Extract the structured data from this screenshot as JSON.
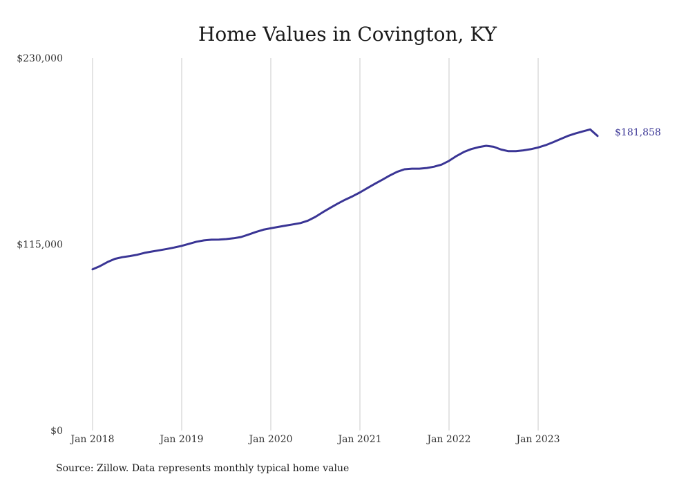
{
  "colors": {
    "line": "#3a3595",
    "grid": "#c8c8c8",
    "text": "#1a1a1a"
  },
  "source": "Source: Zillow. Data represents monthly typical home value",
  "chart_data": {
    "type": "line",
    "title": "Home Values in Covington, KY",
    "xlabel": "",
    "ylabel": "",
    "ylim": [
      0,
      230000
    ],
    "y_ticks": [
      {
        "value": 0,
        "label": "$0"
      },
      {
        "value": 115000,
        "label": "$115,000"
      },
      {
        "value": 230000,
        "label": "$230,000"
      }
    ],
    "x_ticks": [
      {
        "date": "2018-01",
        "label": "Jan 2018"
      },
      {
        "date": "2019-01",
        "label": "Jan 2019"
      },
      {
        "date": "2020-01",
        "label": "Jan 2020"
      },
      {
        "date": "2021-01",
        "label": "Jan 2021"
      },
      {
        "date": "2022-01",
        "label": "Jan 2022"
      },
      {
        "date": "2023-01",
        "label": "Jan 2023"
      }
    ],
    "grid": "vertical",
    "end_label": "$181,858",
    "series": [
      {
        "x": [
          "2018-01",
          "2018-02",
          "2018-03",
          "2018-04",
          "2018-05",
          "2018-06",
          "2018-07",
          "2018-08",
          "2018-09",
          "2018-10",
          "2018-11",
          "2018-12",
          "2019-01",
          "2019-02",
          "2019-03",
          "2019-04",
          "2019-05",
          "2019-06",
          "2019-07",
          "2019-08",
          "2019-09",
          "2019-10",
          "2019-11",
          "2019-12",
          "2020-01",
          "2020-02",
          "2020-03",
          "2020-04",
          "2020-05",
          "2020-06",
          "2020-07",
          "2020-08",
          "2020-09",
          "2020-10",
          "2020-11",
          "2020-12",
          "2021-01",
          "2021-02",
          "2021-03",
          "2021-04",
          "2021-05",
          "2021-06",
          "2021-07",
          "2021-08",
          "2021-09",
          "2021-10",
          "2021-11",
          "2021-12",
          "2022-01",
          "2022-02",
          "2022-03",
          "2022-04",
          "2022-05",
          "2022-06",
          "2022-07",
          "2022-08",
          "2022-09",
          "2022-10",
          "2022-11",
          "2022-12",
          "2023-01",
          "2023-02",
          "2023-03",
          "2023-04",
          "2023-05",
          "2023-06",
          "2023-07",
          "2023-08",
          "2023-09"
        ],
        "values": [
          99500,
          101500,
          104000,
          106000,
          107000,
          107700,
          108500,
          109700,
          110500,
          111300,
          112100,
          113000,
          114000,
          115300,
          116600,
          117400,
          117800,
          117900,
          118200,
          118700,
          119500,
          121000,
          122600,
          124000,
          124900,
          125700,
          126500,
          127300,
          128100,
          129600,
          131900,
          134800,
          137500,
          140100,
          142500,
          144600,
          147000,
          149700,
          152300,
          154800,
          157400,
          159700,
          161300,
          161700,
          161700,
          162100,
          162900,
          164200,
          166500,
          169500,
          172000,
          173800,
          175000,
          175800,
          175200,
          173500,
          172500,
          172500,
          173000,
          173700,
          174800,
          176200,
          178000,
          180000,
          181900,
          183400,
          184700,
          185900,
          181858
        ]
      }
    ]
  }
}
